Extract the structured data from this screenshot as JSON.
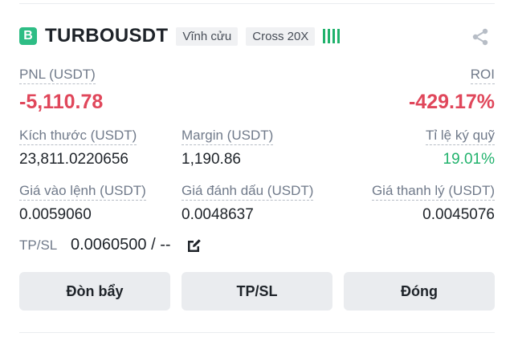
{
  "colors": {
    "negative": "#e0475b",
    "positive": "#20b26c",
    "brand": "#2ebd85"
  },
  "header": {
    "badge": "B",
    "symbol": "TURBOUSDT",
    "type_tag": "Vĩnh cửu",
    "margin_tag": "Cross 20X",
    "icons": {
      "share": "share-icon",
      "strength": "signal-bars-icon"
    }
  },
  "pnl": {
    "label": "PNL (USDT)",
    "value": "-5,110.78"
  },
  "roi": {
    "label": "ROI",
    "value": "-429.17%"
  },
  "size": {
    "label": "Kích thước (USDT)",
    "value": "23,811.0220656"
  },
  "margin": {
    "label": "Margin (USDT)",
    "value": "1,190.86"
  },
  "margin_ratio": {
    "label": "Tỉ lệ ký quỹ",
    "value": "19.01%"
  },
  "entry_price": {
    "label": "Giá vào lệnh (USDT)",
    "value": "0.0059060"
  },
  "mark_price": {
    "label": "Giá đánh dấu (USDT)",
    "value": "0.0048637"
  },
  "liq_price": {
    "label": "Giá thanh lý (USDT)",
    "value": "0.0045076"
  },
  "tpsl": {
    "label": "TP/SL",
    "value": "0.0060500 / --",
    "icon": "edit-icon"
  },
  "buttons": {
    "leverage": "Đòn bẩy",
    "tpsl": "TP/SL",
    "close": "Đóng"
  }
}
